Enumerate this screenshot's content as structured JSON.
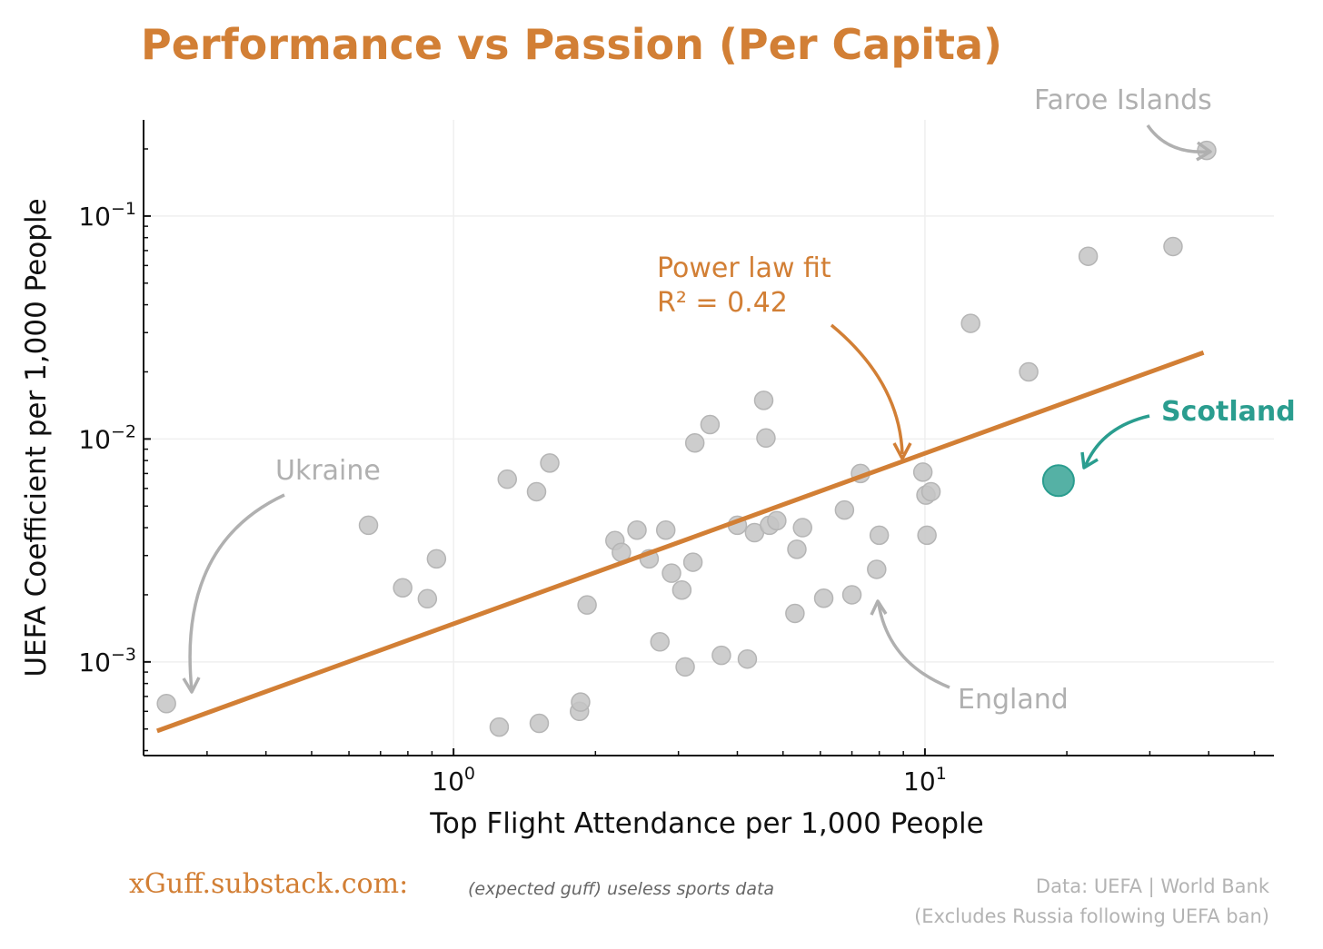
{
  "chart_data": {
    "type": "scatter",
    "title": "Performance vs Passion (Per Capita)",
    "xlabel": "Top Flight Attendance per 1,000 People",
    "ylabel": "UEFA Coefficient per 1,000 People",
    "xscale": "log",
    "yscale": "log",
    "xlim": [
      0.22,
      55
    ],
    "ylim": [
      0.00038,
      0.27
    ],
    "x_ticks": [
      {
        "value": 1,
        "base": "10",
        "exp": "0"
      },
      {
        "value": 10,
        "base": "10",
        "exp": "1"
      }
    ],
    "y_ticks": [
      {
        "value": 0.001,
        "base": "10",
        "exp": "−3"
      },
      {
        "value": 0.01,
        "base": "10",
        "exp": "−2"
      },
      {
        "value": 0.1,
        "base": "10",
        "exp": "−1"
      }
    ],
    "grid": true,
    "points": [
      [
        0.246,
        0.00065
      ],
      [
        0.66,
        0.0041
      ],
      [
        0.78,
        0.00215
      ],
      [
        0.88,
        0.00192
      ],
      [
        0.92,
        0.0029
      ],
      [
        1.25,
        0.00051
      ],
      [
        1.3,
        0.0066
      ],
      [
        1.5,
        0.0058
      ],
      [
        1.52,
        0.00053
      ],
      [
        1.6,
        0.0078
      ],
      [
        1.85,
        0.0006
      ],
      [
        1.86,
        0.00066
      ],
      [
        1.92,
        0.0018
      ],
      [
        2.2,
        0.0035
      ],
      [
        2.27,
        0.0031
      ],
      [
        2.45,
        0.0039
      ],
      [
        2.6,
        0.0029
      ],
      [
        2.74,
        0.00123
      ],
      [
        2.82,
        0.0039
      ],
      [
        2.9,
        0.0025
      ],
      [
        3.05,
        0.0021
      ],
      [
        3.1,
        0.00095
      ],
      [
        3.22,
        0.0028
      ],
      [
        3.25,
        0.0096
      ],
      [
        3.5,
        0.0116
      ],
      [
        3.7,
        0.00107
      ],
      [
        4.0,
        0.0041
      ],
      [
        4.2,
        0.00103
      ],
      [
        4.35,
        0.0038
      ],
      [
        4.55,
        0.0149
      ],
      [
        4.6,
        0.0101
      ],
      [
        4.68,
        0.0041
      ],
      [
        4.85,
        0.0043
      ],
      [
        5.3,
        0.00165
      ],
      [
        5.35,
        0.0032
      ],
      [
        5.5,
        0.004
      ],
      [
        6.1,
        0.00193
      ],
      [
        6.75,
        0.0048
      ],
      [
        7.0,
        0.002
      ],
      [
        7.3,
        0.007
      ],
      [
        7.9,
        0.0026
      ],
      [
        8.0,
        0.0037
      ],
      [
        9.9,
        0.0071
      ],
      [
        10.05,
        0.0056
      ],
      [
        10.1,
        0.0037
      ],
      [
        10.3,
        0.0058
      ],
      [
        12.5,
        0.033
      ],
      [
        16.6,
        0.02
      ],
      [
        22.2,
        0.066
      ],
      [
        33.6,
        0.073
      ],
      [
        39.6,
        0.197
      ]
    ],
    "highlight": {
      "name": "Scotland",
      "x": 19.2,
      "y": 0.0065
    },
    "fit": {
      "name": "Power law fit",
      "r2_label": "R² = 0.42",
      "x": [
        0.235,
        39.0
      ],
      "y": [
        0.00049,
        0.0244
      ]
    },
    "annotations": [
      {
        "text": "Faroe Islands",
        "x": 39.6,
        "y": 0.197
      },
      {
        "text": "Ukraine",
        "x": 0.246,
        "y": 0.00065
      },
      {
        "text": "England",
        "x": 7.0,
        "y": 0.002
      },
      {
        "text": "Scotland",
        "x": 19.2,
        "y": 0.0065
      }
    ]
  },
  "colors": {
    "title": "#D27F35",
    "fit": "#D27F35",
    "points": "#C4C4C4",
    "highlight": "#2A9D8F",
    "annotation_gray": "#B0B0B0",
    "grid": "#EFEFEF",
    "axis": "#111111",
    "footer_gray": "#B3B3B3",
    "footer_sub": "#666666"
  },
  "footer": {
    "brand": "xGuff.substack.com:",
    "tagline": "(expected guff) useless sports data",
    "source_line1": "Data: UEFA | World Bank",
    "source_line2": "(Excludes Russia following UEFA ban)"
  }
}
